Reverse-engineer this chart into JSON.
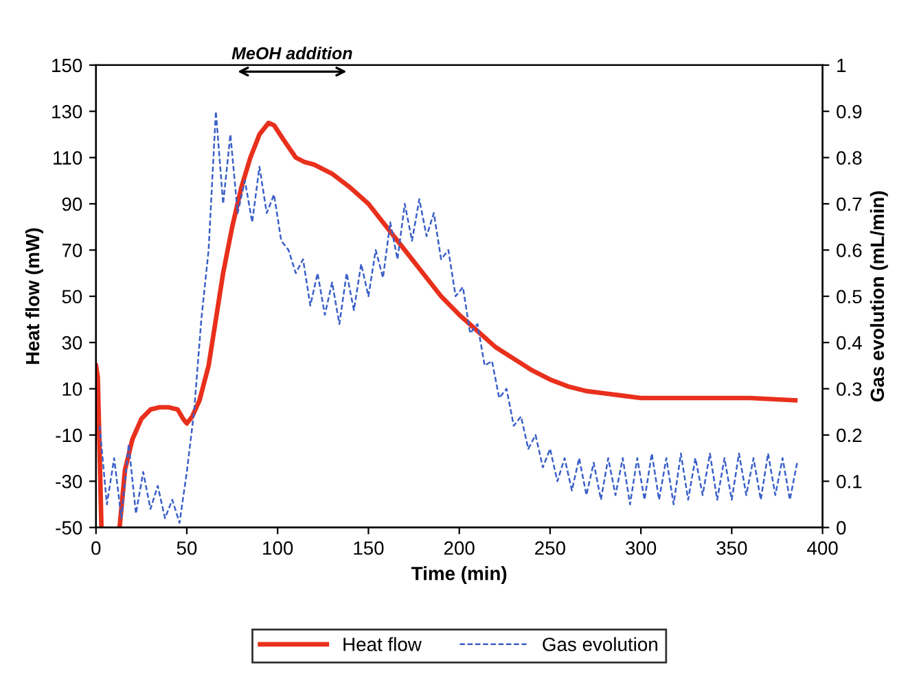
{
  "chart_data": {
    "type": "line",
    "xlabel": "Time (min)",
    "ylabel": "Heat flow (mW)",
    "y2label": "Gas evolution (mL/min)",
    "xlim": [
      0,
      400
    ],
    "xticks": [
      0,
      50,
      100,
      150,
      200,
      250,
      300,
      350,
      400
    ],
    "ylim": [
      -50,
      150
    ],
    "yticks": [
      -50,
      -30,
      -10,
      10,
      30,
      50,
      70,
      90,
      110,
      130,
      150
    ],
    "y2lim": [
      0,
      1
    ],
    "y2ticks": [
      0,
      0.1,
      0.2,
      0.3,
      0.4,
      0.5,
      0.6,
      0.7,
      0.8,
      0.9,
      1
    ],
    "annotations": [
      "MeOH addition"
    ],
    "legend": "bottom",
    "grid": false,
    "series": [
      {
        "name": "Heat flow",
        "color": "#e8301c",
        "line_style": "solid",
        "x": [
          0,
          1,
          3,
          5,
          13,
          16,
          20,
          25,
          30,
          35,
          40,
          45,
          48,
          50,
          53,
          57,
          62,
          66,
          70,
          75,
          80,
          85,
          90,
          95,
          98,
          103,
          110,
          115,
          120,
          130,
          140,
          150,
          160,
          170,
          180,
          190,
          200,
          210,
          220,
          230,
          240,
          250,
          260,
          270,
          280,
          290,
          300,
          320,
          340,
          360,
          385
        ],
        "values": [
          20,
          15,
          -50,
          null,
          -50,
          -25,
          -12,
          -3,
          1,
          2,
          2,
          1,
          -3,
          -5,
          -2,
          5,
          20,
          40,
          60,
          80,
          97,
          110,
          120,
          125,
          124,
          118,
          110,
          108,
          107,
          103,
          97,
          90,
          80,
          70,
          60,
          50,
          42,
          35,
          28,
          23,
          18,
          14,
          11,
          9,
          8,
          7,
          6,
          6,
          6,
          6,
          5
        ]
      },
      {
        "name": "Gas evolution",
        "color": "#3a5fc8",
        "line_style": "dashed",
        "axis": "y2",
        "x": [
          2,
          6,
          10,
          14,
          18,
          22,
          26,
          30,
          34,
          38,
          42,
          46,
          50,
          54,
          58,
          62,
          66,
          70,
          74,
          78,
          82,
          86,
          90,
          94,
          98,
          102,
          106,
          110,
          114,
          118,
          122,
          126,
          130,
          134,
          138,
          142,
          146,
          150,
          154,
          158,
          162,
          166,
          170,
          174,
          178,
          182,
          186,
          190,
          194,
          198,
          202,
          206,
          210,
          214,
          218,
          222,
          226,
          230,
          234,
          238,
          242,
          246,
          250,
          254,
          258,
          262,
          266,
          270,
          274,
          278,
          282,
          286,
          290,
          294,
          298,
          302,
          306,
          310,
          314,
          318,
          322,
          326,
          330,
          334,
          338,
          342,
          346,
          350,
          354,
          358,
          362,
          366,
          370,
          374,
          378,
          382,
          386
        ],
        "values": [
          0.22,
          0.05,
          0.15,
          0.02,
          0.18,
          0.03,
          0.12,
          0.04,
          0.09,
          0.02,
          0.06,
          0.01,
          0.12,
          0.25,
          0.45,
          0.6,
          0.9,
          0.7,
          0.85,
          0.68,
          0.75,
          0.66,
          0.78,
          0.68,
          0.72,
          0.62,
          0.6,
          0.55,
          0.58,
          0.48,
          0.55,
          0.46,
          0.53,
          0.44,
          0.55,
          0.47,
          0.57,
          0.5,
          0.6,
          0.54,
          0.66,
          0.58,
          0.7,
          0.62,
          0.71,
          0.63,
          0.68,
          0.58,
          0.6,
          0.5,
          0.52,
          0.42,
          0.44,
          0.35,
          0.36,
          0.28,
          0.3,
          0.22,
          0.24,
          0.17,
          0.2,
          0.13,
          0.17,
          0.1,
          0.15,
          0.08,
          0.15,
          0.07,
          0.14,
          0.06,
          0.15,
          0.07,
          0.15,
          0.05,
          0.15,
          0.06,
          0.16,
          0.06,
          0.15,
          0.05,
          0.16,
          0.06,
          0.15,
          0.07,
          0.16,
          0.06,
          0.15,
          0.06,
          0.16,
          0.07,
          0.15,
          0.06,
          0.16,
          0.07,
          0.15,
          0.06,
          0.14
        ]
      }
    ]
  }
}
